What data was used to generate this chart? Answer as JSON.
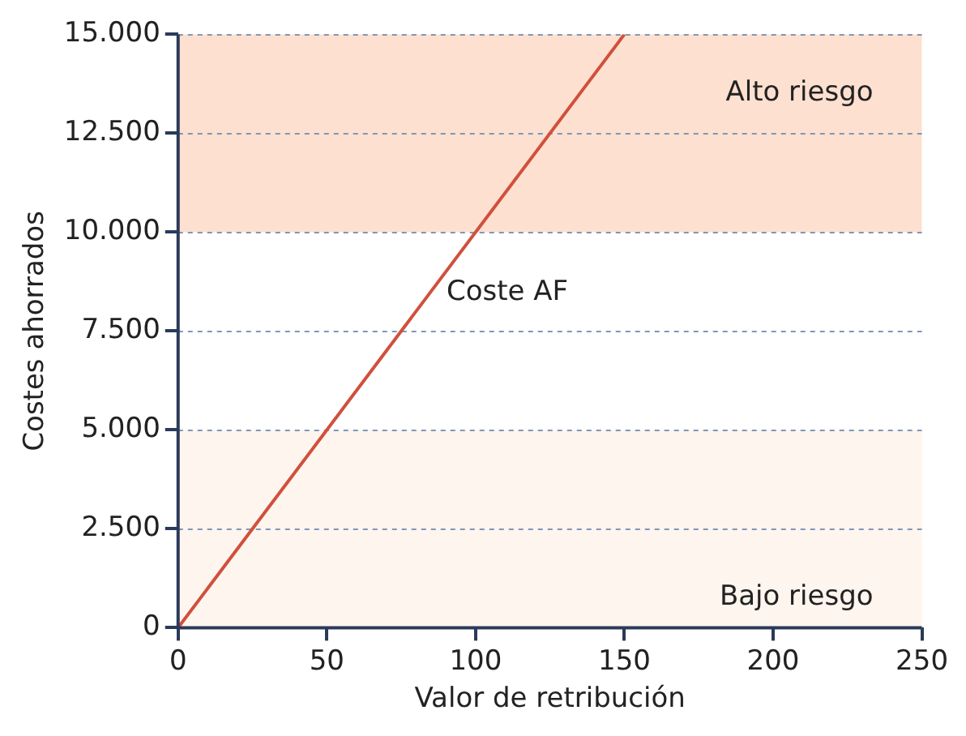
{
  "chart_data": {
    "type": "line",
    "xlabel": "Valor de retribución",
    "ylabel": "Costes ahorrados",
    "x": [
      0,
      150
    ],
    "series": [
      {
        "name": "Coste AF",
        "color": "#d0503c",
        "values": [
          0,
          15000
        ]
      }
    ],
    "xlim": [
      0,
      250
    ],
    "xticks": [
      0,
      50,
      100,
      150,
      200,
      250
    ],
    "ylim": [
      0,
      15000
    ],
    "yticks": [
      0,
      {
        "value": 2500,
        "label": "2.500"
      },
      {
        "value": 5000,
        "label": "5.000"
      },
      {
        "value": 7500,
        "label": "7.500"
      },
      {
        "value": 10000,
        "label": "10.000"
      },
      {
        "value": 12500,
        "label": "12.500"
      },
      {
        "value": 15000,
        "label": "15.000"
      }
    ],
    "bands": [
      {
        "axis": "y",
        "from": 10000,
        "to": 15000,
        "label": "Alto riesgo",
        "color": "#fde0d0"
      },
      {
        "axis": "y",
        "from": 0,
        "to": 5000,
        "label": "Bajo riesgo",
        "color": "#fef5ee"
      }
    ],
    "grid": "y",
    "legend": false,
    "marker": "none",
    "line_style": "solid"
  }
}
